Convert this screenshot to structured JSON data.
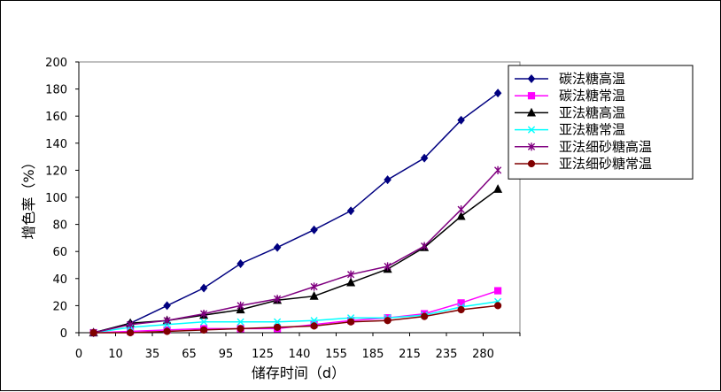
{
  "chart_data": {
    "type": "line",
    "title": "",
    "xlabel": "储存时间（d）",
    "ylabel": "增色率（%）",
    "ylim": [
      0,
      200
    ],
    "y_ticks": [
      0,
      20,
      40,
      60,
      80,
      100,
      120,
      140,
      160,
      180,
      200
    ],
    "x_ticks": [
      "0",
      "10",
      "35",
      "65",
      "95",
      "125",
      "140",
      "155",
      "185",
      "215",
      "235",
      "280"
    ],
    "grid": false,
    "legend_position": "right",
    "x": [
      10,
      35,
      60,
      85,
      110,
      135,
      160,
      185,
      210,
      235,
      260,
      285
    ],
    "series": [
      {
        "name": "碳法糖高温",
        "marker": "diamond",
        "color": "#000080",
        "values": [
          0,
          7,
          20,
          33,
          51,
          63,
          76,
          90,
          113,
          129,
          157,
          177
        ]
      },
      {
        "name": "碳法糖常温",
        "marker": "square",
        "color": "#ff00ff",
        "values": [
          0,
          1,
          2,
          3,
          3,
          3,
          6,
          9,
          11,
          14,
          22,
          31
        ]
      },
      {
        "name": "亚法糖高温",
        "marker": "triangle",
        "color": "#000000",
        "values": [
          0,
          7,
          9,
          13,
          17,
          24,
          27,
          37,
          47,
          63,
          86,
          106
        ]
      },
      {
        "name": "亚法糖常温",
        "marker": "x",
        "color": "#00ffff",
        "values": [
          0,
          4,
          6,
          8,
          8,
          8,
          9,
          11,
          11,
          13,
          19,
          23
        ]
      },
      {
        "name": "亚法细砂糖高温",
        "marker": "star",
        "color": "#800080",
        "values": [
          0,
          6,
          9,
          14,
          20,
          25,
          34,
          43,
          49,
          64,
          91,
          120
        ]
      },
      {
        "name": "亚法细砂糖常温",
        "marker": "circle",
        "color": "#800000",
        "values": [
          0,
          0,
          1,
          2,
          3,
          4,
          5,
          8,
          9,
          12,
          17,
          20
        ]
      }
    ]
  }
}
